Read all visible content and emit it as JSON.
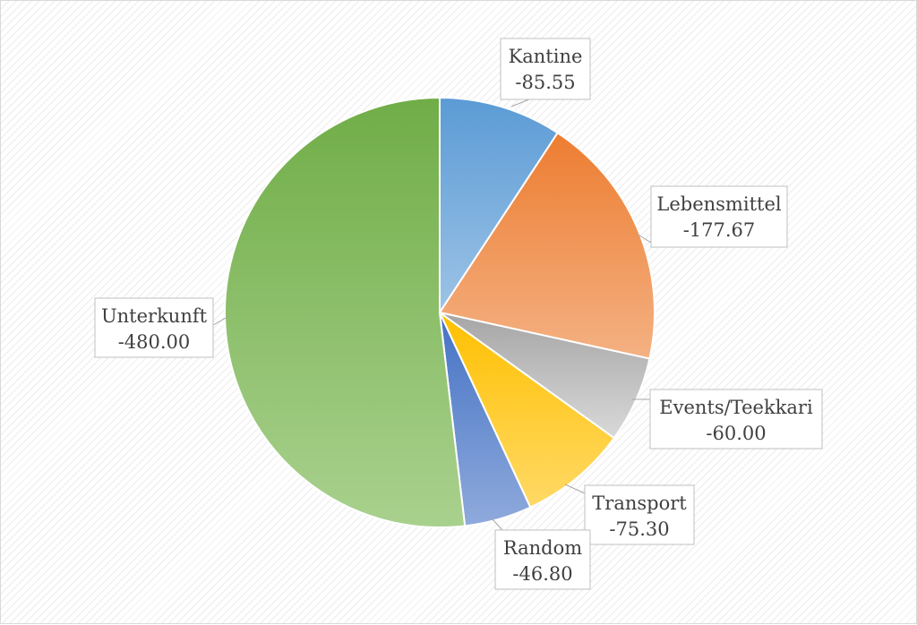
{
  "chart_data": {
    "type": "pie",
    "title": "",
    "slices": [
      {
        "label": "Kantine",
        "value": -85.55,
        "value_text": "-85.55",
        "color_top": "#5b9bd5",
        "color_bottom": "#9dc3e6"
      },
      {
        "label": "Lebensmittel",
        "value": -177.67,
        "value_text": "-177.67",
        "color_top": "#ed7d31",
        "color_bottom": "#f4b183"
      },
      {
        "label": "Events/Teekkari",
        "value": -60.0,
        "value_text": "-60.00",
        "color_top": "#a5a5a5",
        "color_bottom": "#d9d9d9"
      },
      {
        "label": "Transport",
        "value": -75.3,
        "value_text": "-75.30",
        "color_top": "#ffc000",
        "color_bottom": "#ffd966"
      },
      {
        "label": "Random",
        "value": -46.8,
        "value_text": "-46.80",
        "color_top": "#4472c4",
        "color_bottom": "#8faadc"
      },
      {
        "label": "Unterkunft",
        "value": -480.0,
        "value_text": "-480.00",
        "color_top": "#70ad47",
        "color_bottom": "#a9d18e"
      }
    ],
    "legend": "none",
    "data_labels": "callouts with category name and value"
  }
}
